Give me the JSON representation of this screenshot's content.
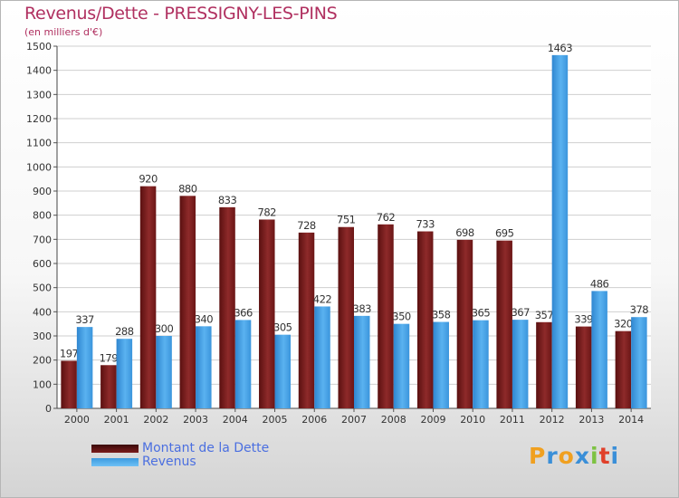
{
  "header": {
    "title": "Revenus/Dette - PRESSIGNY-LES-PINS",
    "subtitle": "(en milliers d'€)"
  },
  "chart_data": {
    "type": "bar",
    "title": "Revenus/Dette - PRESSIGNY-LES-PINS",
    "subtitle": "(en milliers d'€)",
    "xlabel": "",
    "ylabel": "",
    "ylim": [
      0,
      1500
    ],
    "yticks": [
      0,
      100,
      200,
      300,
      400,
      500,
      600,
      700,
      800,
      900,
      1000,
      1100,
      1200,
      1300,
      1400,
      1500
    ],
    "grid": true,
    "legend_position": "bottom-left",
    "categories": [
      "2000",
      "2001",
      "2002",
      "2003",
      "2004",
      "2005",
      "2006",
      "2007",
      "2008",
      "2009",
      "2010",
      "2011",
      "2012",
      "2013",
      "2014"
    ],
    "series": [
      {
        "name": "Montant de la Dette",
        "color": "#7a1c1c",
        "values": [
          197,
          179,
          920,
          880,
          833,
          782,
          728,
          751,
          762,
          733,
          698,
          695,
          357,
          339,
          320
        ]
      },
      {
        "name": "Revenus",
        "color": "#3d9be0",
        "values": [
          337,
          288,
          300,
          340,
          366,
          305,
          422,
          383,
          350,
          358,
          365,
          367,
          1463,
          486,
          378
        ]
      }
    ]
  },
  "logo": {
    "letters": [
      "P",
      "r",
      "o",
      "x",
      "i",
      "t",
      "i"
    ],
    "colors": [
      "#f0a020",
      "#3a8fd8",
      "#f0a020",
      "#3a8fd8",
      "#7dc242",
      "#e0402a",
      "#3a8fd8"
    ]
  }
}
